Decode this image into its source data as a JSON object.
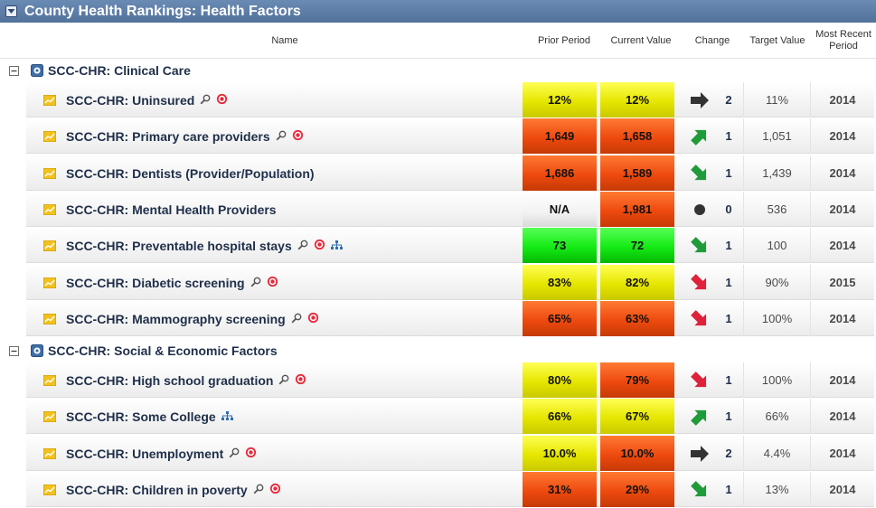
{
  "title": "County Health Rankings: Health Factors",
  "colors": {
    "titlebar": "#5b7ba6",
    "yellow": "#e6e600",
    "orange": "#ee4a0f",
    "green": "#15ea15",
    "arrow_up": "#1f9b3a",
    "arrow_down": "#e0213a",
    "arrow_flat": "#333333"
  },
  "columns": {
    "name": "Name",
    "prior": "Prior Period",
    "current": "Current Value",
    "change": "Change",
    "target": "Target Value",
    "period": "Most Recent Period"
  },
  "groups": [
    {
      "label": "SCC-CHR: Clinical Care",
      "rows": [
        {
          "label": "SCC-CHR: Uninsured",
          "icons": [
            "magnifier-icon",
            "target-icon"
          ],
          "prior": "12%",
          "prior_color": "yellow",
          "current": "12%",
          "current_color": "yellow",
          "change_dir": "flat",
          "change": "2",
          "target": "11%",
          "period": "2014"
        },
        {
          "label": "SCC-CHR: Primary care providers",
          "icons": [
            "magnifier-icon",
            "target-icon"
          ],
          "prior": "1,649",
          "prior_color": "orange",
          "current": "1,658",
          "current_color": "orange",
          "change_dir": "up",
          "change": "1",
          "target": "1,051",
          "period": "2014"
        },
        {
          "label": "SCC-CHR: Dentists (Provider/Population)",
          "icons": [],
          "prior": "1,686",
          "prior_color": "orange",
          "current": "1,589",
          "current_color": "orange",
          "change_dir": "down-green",
          "change": "1",
          "target": "1,439",
          "period": "2014"
        },
        {
          "label": "SCC-CHR: Mental Health Providers",
          "icons": [],
          "prior": "N/A",
          "prior_color": "white",
          "current": "1,981",
          "current_color": "orange",
          "change_dir": "dot",
          "change": "0",
          "target": "536",
          "period": "2014"
        },
        {
          "label": "SCC-CHR: Preventable hospital stays",
          "icons": [
            "magnifier-icon",
            "target-icon",
            "hierarchy-icon"
          ],
          "prior": "73",
          "prior_color": "green",
          "current": "72",
          "current_color": "green",
          "change_dir": "down-green",
          "change": "1",
          "target": "100",
          "period": "2014"
        },
        {
          "label": "SCC-CHR: Diabetic screening",
          "icons": [
            "magnifier-icon",
            "target-icon"
          ],
          "prior": "83%",
          "prior_color": "yellow",
          "current": "82%",
          "current_color": "yellow",
          "change_dir": "down-red",
          "change": "1",
          "target": "90%",
          "period": "2015"
        },
        {
          "label": "SCC-CHR: Mammography screening",
          "icons": [
            "magnifier-icon",
            "target-icon"
          ],
          "prior": "65%",
          "prior_color": "orange",
          "current": "63%",
          "current_color": "orange",
          "change_dir": "down-red",
          "change": "1",
          "target": "100%",
          "period": "2014"
        }
      ]
    },
    {
      "label": "SCC-CHR: Social & Economic Factors",
      "rows": [
        {
          "label": "SCC-CHR: High school graduation",
          "icons": [
            "magnifier-icon",
            "target-icon"
          ],
          "prior": "80%",
          "prior_color": "yellow",
          "current": "79%",
          "current_color": "orange",
          "change_dir": "down-red",
          "change": "1",
          "target": "100%",
          "period": "2014"
        },
        {
          "label": "SCC-CHR: Some College",
          "icons": [
            "hierarchy-icon"
          ],
          "prior": "66%",
          "prior_color": "yellow",
          "current": "67%",
          "current_color": "yellow",
          "change_dir": "up",
          "change": "1",
          "target": "66%",
          "period": "2014"
        },
        {
          "label": "SCC-CHR: Unemployment",
          "icons": [
            "magnifier-icon",
            "target-icon"
          ],
          "prior": "10.0%",
          "prior_color": "yellow",
          "current": "10.0%",
          "current_color": "orange",
          "change_dir": "flat",
          "change": "2",
          "target": "4.4%",
          "period": "2014"
        },
        {
          "label": "SCC-CHR: Children in poverty",
          "icons": [
            "magnifier-icon",
            "target-icon"
          ],
          "prior": "31%",
          "prior_color": "orange",
          "current": "29%",
          "current_color": "orange",
          "change_dir": "down-green",
          "change": "1",
          "target": "13%",
          "period": "2014"
        }
      ]
    }
  ]
}
